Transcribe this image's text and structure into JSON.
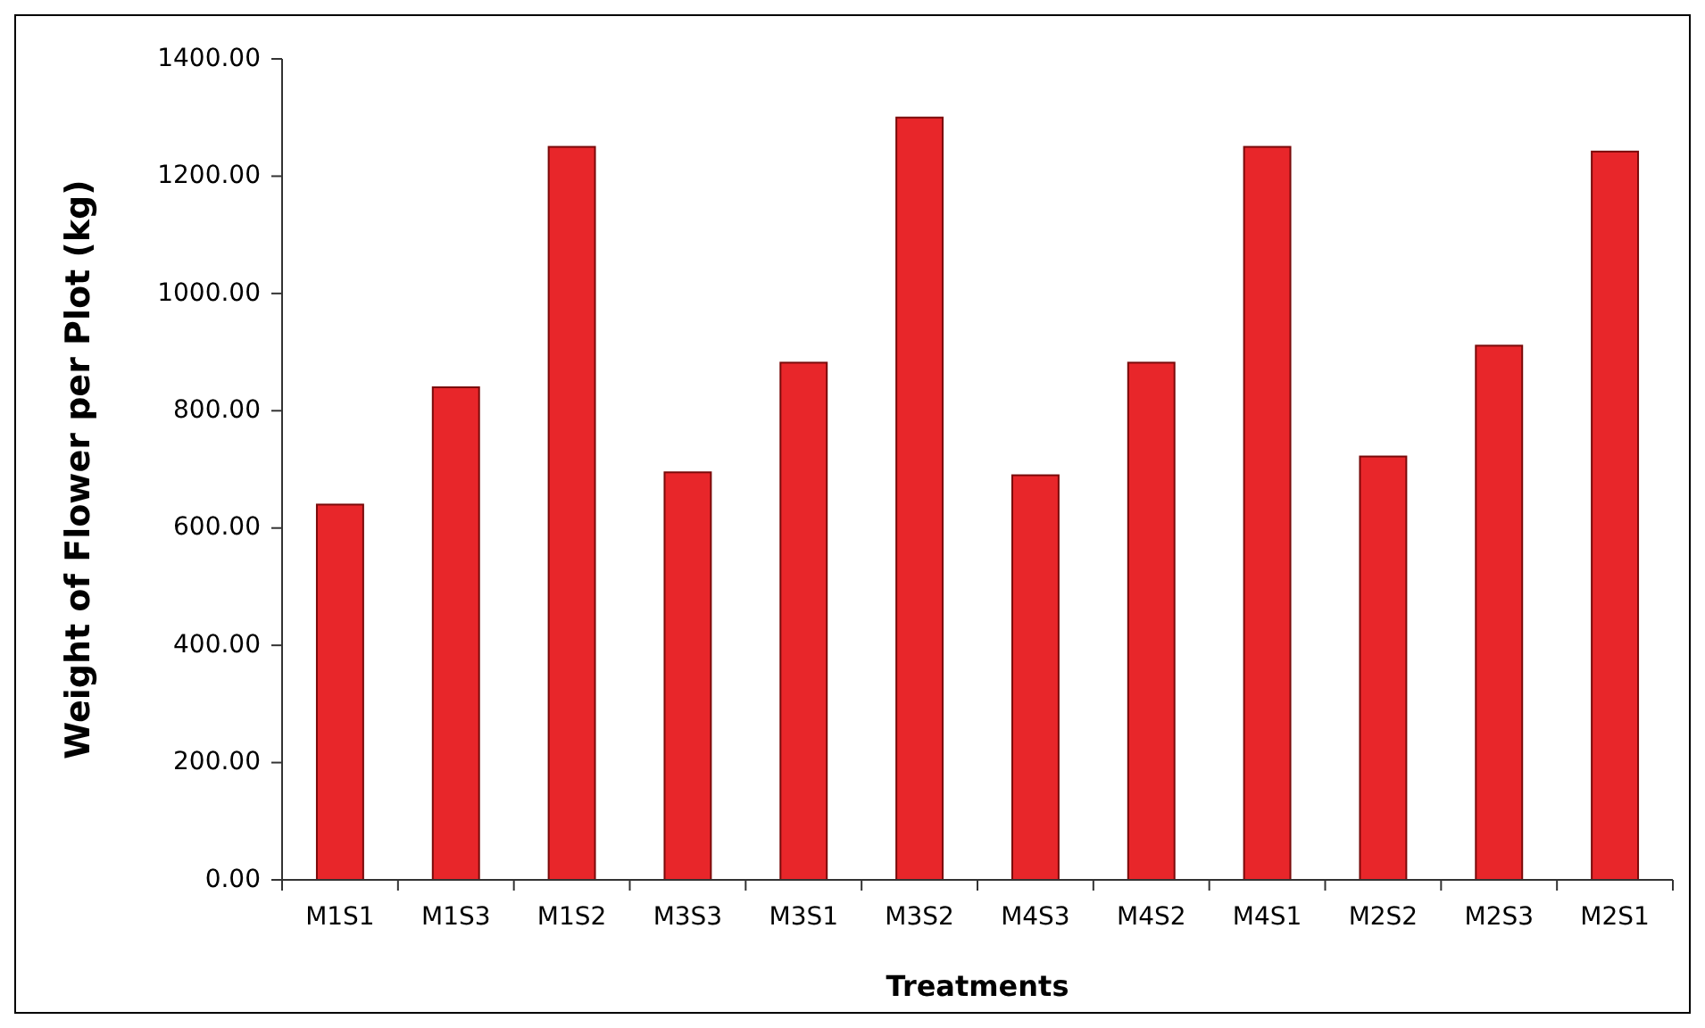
{
  "chart_data": {
    "type": "bar",
    "xlabel": "Treatments",
    "ylabel": "Weight of Flower per Plot (kg)",
    "categories": [
      "M1S1",
      "M1S3",
      "M1S2",
      "M3S3",
      "M3S1",
      "M3S2",
      "M4S3",
      "M4S2",
      "M4S1",
      "M2S2",
      "M2S3",
      "M2S1"
    ],
    "values": [
      640,
      840,
      1250,
      695,
      882,
      1300,
      690,
      882,
      1250,
      722,
      911,
      1242
    ],
    "color": "#e8262a",
    "ylim": [
      0,
      1400
    ],
    "yticks": [
      {
        "value": 0,
        "label": "0.00"
      },
      {
        "value": 200,
        "label": "200.00"
      },
      {
        "value": 400,
        "label": "400.00"
      },
      {
        "value": 600,
        "label": "600.00"
      },
      {
        "value": 800,
        "label": "800.00"
      },
      {
        "value": 1000,
        "label": "1000.00"
      },
      {
        "value": 1200,
        "label": "1200.00"
      },
      {
        "value": 1400,
        "label": "1400.00"
      }
    ],
    "grid": false
  }
}
